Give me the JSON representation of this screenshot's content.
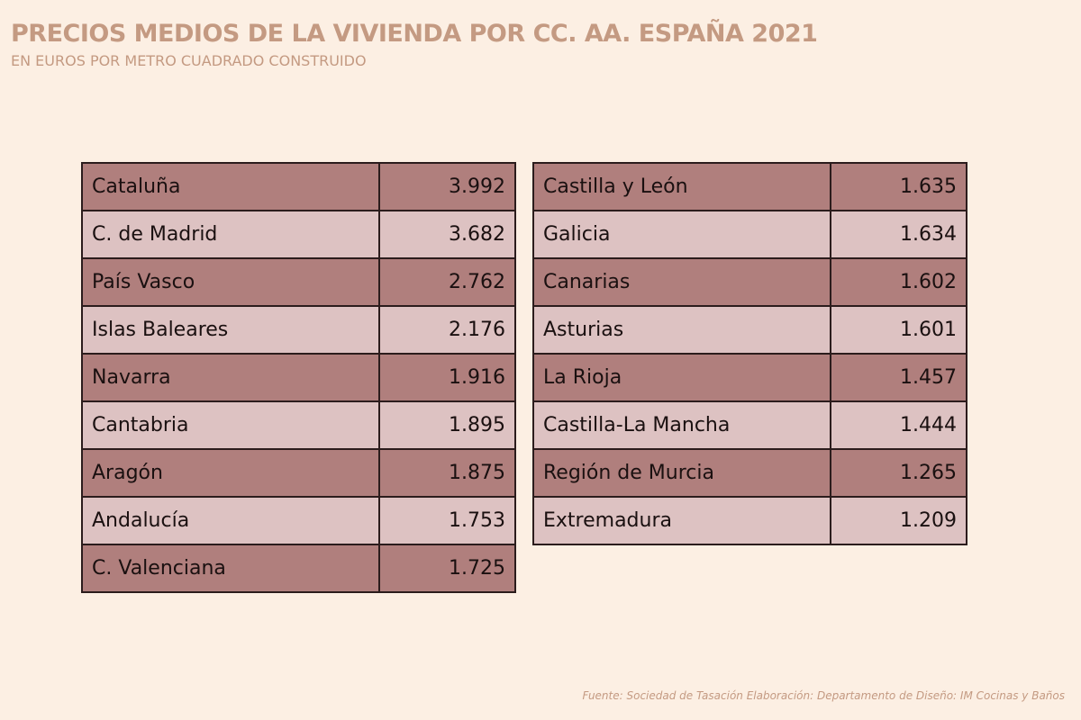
{
  "chart_data": {
    "type": "table",
    "title": "PRECIOS MEDIOS DE LA VIVIENDA POR CC. AA. ESPAÑA 2021",
    "subtitle": "EN EUROS POR METRO CUADRADO CONSTRUIDO",
    "columns": [
      {
        "rows": [
          {
            "name": "Cataluña",
            "value": "3.992"
          },
          {
            "name": "C. de Madrid",
            "value": "3.682"
          },
          {
            "name": "País Vasco",
            "value": "2.762"
          },
          {
            "name": "Islas Baleares",
            "value": "2.176"
          },
          {
            "name": "Navarra",
            "value": "1.916"
          },
          {
            "name": "Cantabria",
            "value": "1.895"
          },
          {
            "name": "Aragón",
            "value": "1.875"
          },
          {
            "name": "Andalucía",
            "value": "1.753"
          },
          {
            "name": "C. Valenciana",
            "value": "1.725"
          }
        ]
      },
      {
        "rows": [
          {
            "name": "Castilla y León",
            "value": "1.635"
          },
          {
            "name": "Galicia",
            "value": "1.634"
          },
          {
            "name": "Canarias",
            "value": "1.602"
          },
          {
            "name": "Asturias",
            "value": "1.601"
          },
          {
            "name": "La Rioja",
            "value": "1.457"
          },
          {
            "name": "Castilla-La Mancha",
            "value": "1.444"
          },
          {
            "name": "Región de Murcia",
            "value": "1.265"
          },
          {
            "name": "Extremadura",
            "value": "1.209"
          }
        ]
      }
    ],
    "colors": {
      "row_dark": "#b07f7d",
      "row_light": "#ddc2c2",
      "title": "#c49a82",
      "background": "#fcefe3"
    }
  },
  "footer": {
    "source": "Fuente: Sociedad de Tasación   Elaboración: Departamento de Diseño: IM Cocinas y Baños"
  }
}
